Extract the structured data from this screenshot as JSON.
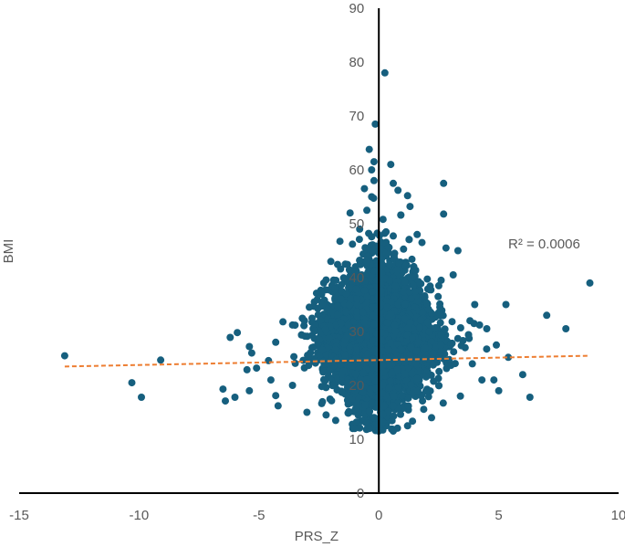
{
  "chart_data": {
    "type": "scatter",
    "xlabel": "PRS_Z",
    "ylabel": "BMI",
    "xlim": [
      -15,
      10
    ],
    "ylim": [
      0,
      90
    ],
    "x_ticks": [
      -15,
      -10,
      -5,
      0,
      5,
      10
    ],
    "y_ticks": [
      0,
      10,
      20,
      30,
      40,
      50,
      60,
      70,
      80,
      90
    ],
    "x_tick_labels": [
      "-15",
      "-10",
      "-5",
      "0",
      "5",
      "10"
    ],
    "y_tick_labels": [
      "0",
      "10",
      "20",
      "30",
      "40",
      "50",
      "60",
      "70",
      "80",
      "90"
    ],
    "grid": false,
    "legend": "none",
    "annotation": "R² = 0.0006",
    "colors": {
      "points": "#165F7E",
      "trendline": "#ED7D31",
      "axis": "#000000",
      "text": "#595959"
    },
    "series": [
      {
        "points": [
          [
            -13.1,
            25.5
          ],
          [
            -10.3,
            20.5
          ],
          [
            -9.9,
            17.8
          ],
          [
            -9.1,
            24.7
          ],
          [
            -6.5,
            19.3
          ],
          [
            -6.4,
            17.1
          ],
          [
            -6.2,
            28.9
          ],
          [
            -6.0,
            17.8
          ],
          [
            -5.9,
            29.8
          ],
          [
            -5.5,
            22.9
          ],
          [
            -5.4,
            27.2
          ],
          [
            -5.3,
            26.0
          ],
          [
            -5.1,
            23.2
          ],
          [
            -5.4,
            19.0
          ],
          [
            -4.6,
            24.6
          ],
          [
            -4.5,
            21.0
          ],
          [
            -4.3,
            18.1
          ],
          [
            -4.2,
            16.2
          ],
          [
            -4.0,
            31.8
          ],
          [
            -3.6,
            31.2
          ],
          [
            -3.1,
            32.0
          ],
          [
            -3.0,
            15.0
          ],
          [
            -2.9,
            34.5
          ],
          [
            -2.2,
            14.5
          ],
          [
            -2.6,
            37.1
          ],
          [
            -2.3,
            39.0
          ],
          [
            -1.8,
            13.5
          ],
          [
            -1.4,
            42.5
          ],
          [
            -0.8,
            49.0
          ],
          [
            -1.1,
            46.2
          ],
          [
            -0.5,
            52.5
          ],
          [
            -0.4,
            12.0
          ],
          [
            -0.3,
            55.0
          ],
          [
            -0.2,
            58.0
          ],
          [
            -0.3,
            60.0
          ],
          [
            -0.4,
            63.8
          ],
          [
            -0.2,
            61.5
          ],
          [
            -0.15,
            68.5
          ],
          [
            0.25,
            78.0
          ],
          [
            0.5,
            61.0
          ],
          [
            0.6,
            57.5
          ],
          [
            1.2,
            55.2
          ],
          [
            1.3,
            53.2
          ],
          [
            0.8,
            56.2
          ],
          [
            2.7,
            57.5
          ],
          [
            2.7,
            51.8
          ],
          [
            2.8,
            45.5
          ],
          [
            2.6,
            39.5
          ],
          [
            1.8,
            46.5
          ],
          [
            2.5,
            38.5
          ],
          [
            3.3,
            45.0
          ],
          [
            3.1,
            40.5
          ],
          [
            4.0,
            35.0
          ],
          [
            3.8,
            32.0
          ],
          [
            4.2,
            31.2
          ],
          [
            4.5,
            30.5
          ],
          [
            4.9,
            27.5
          ],
          [
            5.3,
            35.0
          ],
          [
            5.4,
            25.2
          ],
          [
            4.3,
            21.0
          ],
          [
            4.8,
            21.0
          ],
          [
            5.0,
            19.0
          ],
          [
            6.0,
            22.0
          ],
          [
            6.3,
            17.8
          ],
          [
            7.0,
            33.0
          ],
          [
            7.8,
            30.5
          ],
          [
            8.8,
            39.0
          ],
          [
            3.4,
            18.0
          ],
          [
            2.2,
            14.0
          ],
          [
            1.2,
            12.5
          ],
          [
            0.6,
            11.5
          ],
          [
            -1.0,
            12.0
          ],
          [
            -3.6,
            20.0
          ],
          [
            -4.3,
            28.0
          ],
          [
            3.6,
            27.0
          ],
          [
            3.9,
            24.0
          ],
          [
            -2.0,
            43.0
          ],
          [
            1.6,
            48.0
          ],
          [
            -1.2,
            52.0
          ],
          [
            -0.6,
            56.5
          ],
          [
            0.3,
            48.5
          ],
          [
            -0.9,
            36.0
          ],
          [
            2.1,
            30.0
          ]
        ],
        "cloud_summary": {
          "x_mean": 0.0,
          "x_sd": 1.0,
          "y_mean": 27.0
        }
      }
    ],
    "trendline": {
      "x": [
        -13.1,
        8.8
      ],
      "y": [
        23.5,
        25.5
      ],
      "r_squared": 0.0006
    }
  }
}
